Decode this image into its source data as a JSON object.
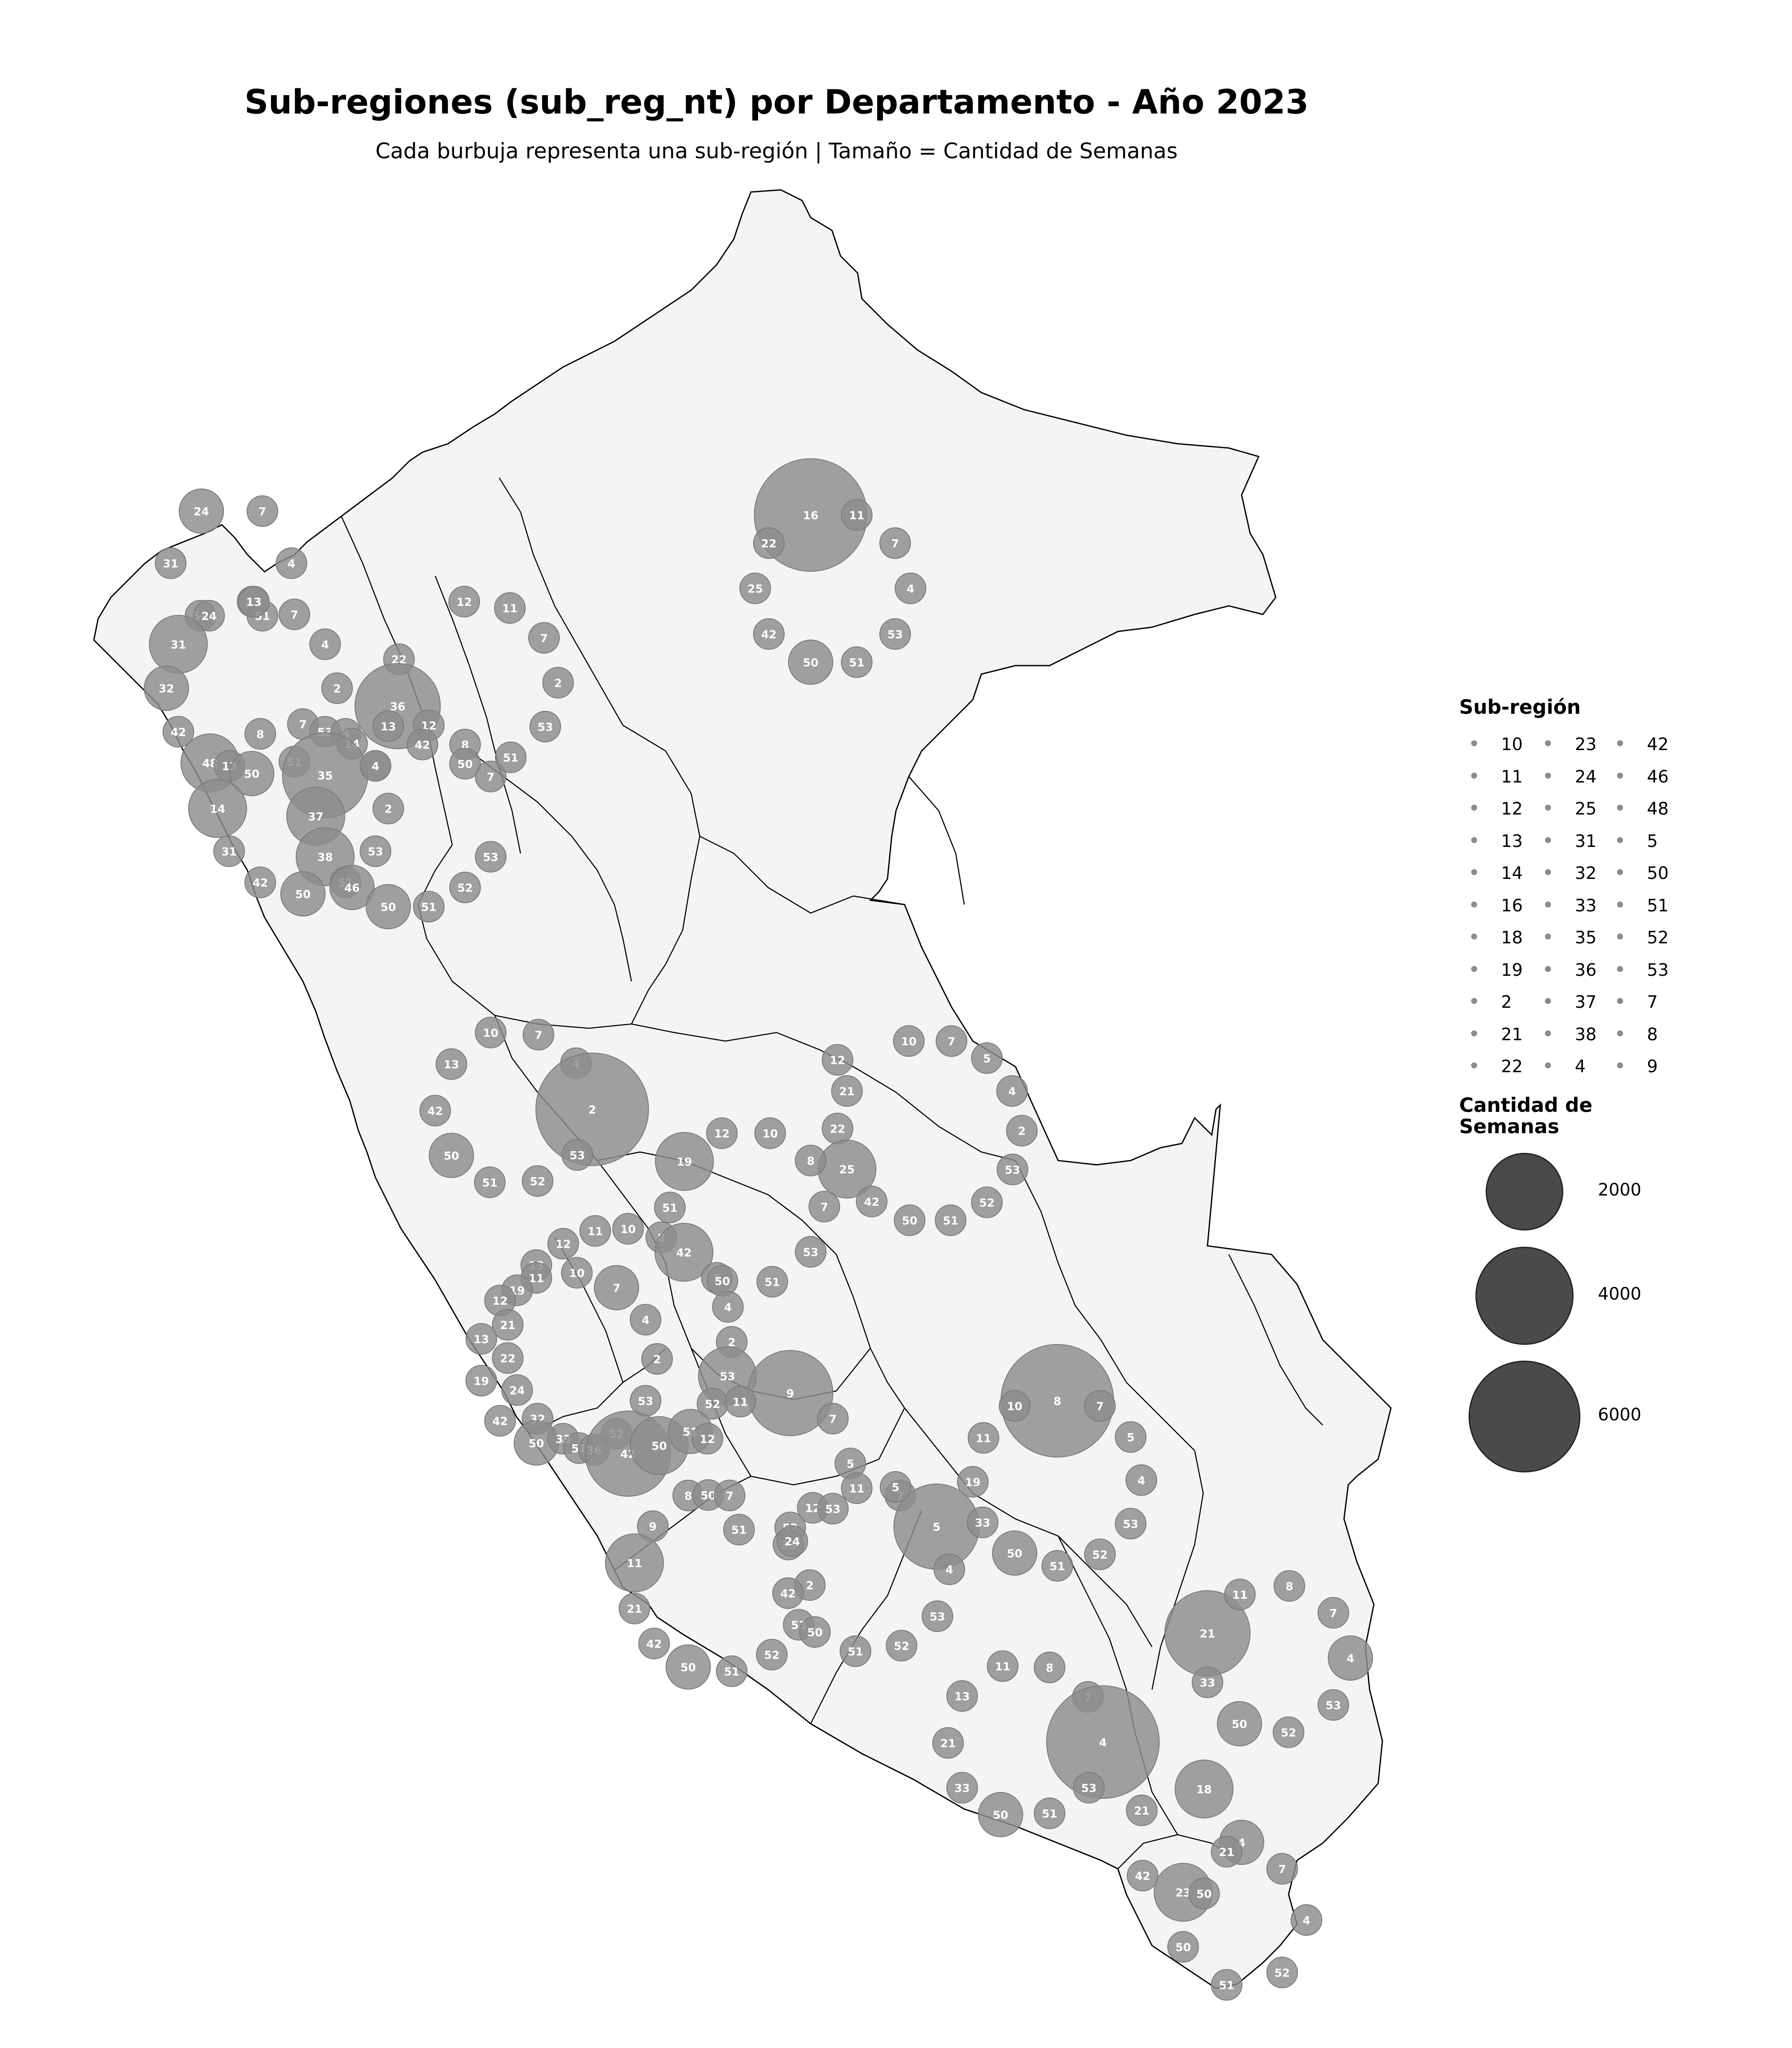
{
  "title": "Sub-regiones (sub_reg_nt) por Departamento - Año 2023",
  "subtitle": "Cada burbuja representa una sub-región | Tamaño = Cantidad de Semanas",
  "colors": {
    "bubble": "#8c8c8c",
    "land": "#f4f4f4",
    "border": "#000000",
    "size_legend": "#4a4a4a"
  },
  "legend_subregion": {
    "title": "Sub-región",
    "columns": [
      [
        "10",
        "11",
        "12",
        "13",
        "14",
        "16",
        "18",
        "19",
        "2",
        "21",
        "22"
      ],
      [
        "23",
        "24",
        "25",
        "31",
        "32",
        "33",
        "35",
        "36",
        "37",
        "38",
        "4"
      ],
      [
        "42",
        "46",
        "48",
        "5",
        "50",
        "51",
        "52",
        "53",
        "7",
        "8",
        "9"
      ]
    ]
  },
  "legend_size": {
    "title_line1": "Cantidad de",
    "title_line2": "Semanas",
    "values": [
      "2000",
      "4000",
      "6000"
    ]
  },
  "bubbles": [
    [
      "16",
      "big"
    ],
    [
      "11",
      "s"
    ],
    [
      "7",
      "s"
    ],
    [
      "4",
      "s"
    ],
    [
      "53",
      "s"
    ],
    [
      "51",
      "s"
    ],
    [
      "50",
      "m"
    ],
    [
      "42",
      "s"
    ],
    [
      "25",
      "s"
    ],
    [
      "22",
      "s"
    ],
    [
      "24",
      "m"
    ],
    [
      "7",
      "s"
    ],
    [
      "31",
      "s"
    ],
    [
      "4",
      "s"
    ],
    [
      "13",
      "s"
    ],
    [
      "51",
      "s"
    ],
    [
      "50",
      "s"
    ],
    [
      "24",
      "s"
    ],
    [
      "7",
      "s"
    ],
    [
      "4",
      "s"
    ],
    [
      "31",
      "l"
    ],
    [
      "32",
      "m"
    ],
    [
      "42",
      "s"
    ],
    [
      "2",
      "s"
    ],
    [
      "13",
      "s"
    ],
    [
      "12",
      "s"
    ],
    [
      "11",
      "s"
    ],
    [
      "7",
      "s"
    ],
    [
      "2",
      "s"
    ],
    [
      "22",
      "s"
    ],
    [
      "36",
      "xl"
    ],
    [
      "13",
      "s"
    ],
    [
      "12",
      "s"
    ],
    [
      "42",
      "s"
    ],
    [
      "8",
      "s"
    ],
    [
      "50",
      "s"
    ],
    [
      "7",
      "s"
    ],
    [
      "51",
      "s"
    ],
    [
      "53",
      "s"
    ],
    [
      "4",
      "s"
    ],
    [
      "48",
      "l"
    ],
    [
      "13",
      "s"
    ],
    [
      "50",
      "m"
    ],
    [
      "8",
      "s"
    ],
    [
      "7",
      "s"
    ],
    [
      "53",
      "s"
    ],
    [
      "5",
      "s"
    ],
    [
      "14",
      "s"
    ],
    [
      "51",
      "s"
    ],
    [
      "35",
      "xl"
    ],
    [
      "4",
      "s"
    ],
    [
      "14",
      "l"
    ],
    [
      "37",
      "l"
    ],
    [
      "2",
      "s"
    ],
    [
      "31",
      "s"
    ],
    [
      "38",
      "l"
    ],
    [
      "53",
      "s"
    ],
    [
      "53",
      "s"
    ],
    [
      "51",
      "s"
    ],
    [
      "46",
      "m"
    ],
    [
      "42",
      "s"
    ],
    [
      "50",
      "m"
    ],
    [
      "50",
      "m"
    ],
    [
      "51",
      "s"
    ],
    [
      "52",
      "s"
    ],
    [
      "10",
      "s"
    ],
    [
      "7",
      "s"
    ],
    [
      "13",
      "s"
    ],
    [
      "4",
      "s"
    ],
    [
      "2",
      "big"
    ],
    [
      "42",
      "s"
    ],
    [
      "50",
      "m"
    ],
    [
      "53",
      "s"
    ],
    [
      "51",
      "s"
    ],
    [
      "52",
      "s"
    ],
    [
      "19",
      "l"
    ],
    [
      "12",
      "s"
    ],
    [
      "10",
      "s"
    ],
    [
      "12",
      "s"
    ],
    [
      "10",
      "s"
    ],
    [
      "7",
      "s"
    ],
    [
      "5",
      "s"
    ],
    [
      "4",
      "s"
    ],
    [
      "21",
      "s"
    ],
    [
      "22",
      "s"
    ],
    [
      "2",
      "s"
    ],
    [
      "25",
      "l"
    ],
    [
      "8",
      "s"
    ],
    [
      "53",
      "s"
    ],
    [
      "7",
      "s"
    ],
    [
      "42",
      "s"
    ],
    [
      "52",
      "s"
    ],
    [
      "50",
      "s"
    ],
    [
      "51",
      "s"
    ],
    [
      "51",
      "s"
    ],
    [
      "10",
      "s"
    ],
    [
      "11",
      "s"
    ],
    [
      "12",
      "s"
    ],
    [
      "8",
      "s"
    ],
    [
      "42",
      "l"
    ],
    [
      "53",
      "s"
    ],
    [
      "13",
      "s"
    ],
    [
      "11",
      "s"
    ],
    [
      "10",
      "s"
    ],
    [
      "7",
      "m"
    ],
    [
      "19",
      "s"
    ],
    [
      "12",
      "s"
    ],
    [
      "5",
      "s"
    ],
    [
      "50",
      "s"
    ],
    [
      "51",
      "s"
    ],
    [
      "4",
      "s"
    ],
    [
      "21",
      "s"
    ],
    [
      "13",
      "s"
    ],
    [
      "22",
      "s"
    ],
    [
      "4",
      "s"
    ],
    [
      "2",
      "s"
    ],
    [
      "2",
      "s"
    ],
    [
      "53",
      "l"
    ],
    [
      "19",
      "s"
    ],
    [
      "24",
      "s"
    ],
    [
      "9",
      "xl"
    ],
    [
      "52",
      "s"
    ],
    [
      "11",
      "s"
    ],
    [
      "7",
      "s"
    ],
    [
      "42",
      "s"
    ],
    [
      "32",
      "s"
    ],
    [
      "53",
      "s"
    ],
    [
      "50",
      "m"
    ],
    [
      "33",
      "s"
    ],
    [
      "51",
      "s"
    ],
    [
      "36",
      "s"
    ],
    [
      "52",
      "s"
    ],
    [
      "42",
      "xl"
    ],
    [
      "50",
      "l"
    ],
    [
      "51",
      "m"
    ],
    [
      "12",
      "s"
    ],
    [
      "8",
      "big"
    ],
    [
      "10",
      "s"
    ],
    [
      "7",
      "s"
    ],
    [
      "5",
      "s"
    ],
    [
      "11",
      "s"
    ],
    [
      "4",
      "s"
    ],
    [
      "53",
      "s"
    ],
    [
      "52",
      "s"
    ],
    [
      "19",
      "s"
    ],
    [
      "7",
      "s"
    ],
    [
      "5",
      "xl"
    ],
    [
      "33",
      "s"
    ],
    [
      "50",
      "m"
    ],
    [
      "51",
      "s"
    ],
    [
      "4",
      "s"
    ],
    [
      "53",
      "s"
    ],
    [
      "5",
      "s"
    ],
    [
      "11",
      "s"
    ],
    [
      "12",
      "s"
    ],
    [
      "53",
      "s"
    ],
    [
      "5",
      "s"
    ],
    [
      "52",
      "s"
    ],
    [
      "33",
      "s"
    ],
    [
      "24",
      "s"
    ],
    [
      "51",
      "s"
    ],
    [
      "9",
      "s"
    ],
    [
      "8",
      "s"
    ],
    [
      "50",
      "s"
    ],
    [
      "7",
      "s"
    ],
    [
      "11",
      "l"
    ],
    [
      "21",
      "s"
    ],
    [
      "42",
      "s"
    ],
    [
      "50",
      "m"
    ],
    [
      "51",
      "s"
    ],
    [
      "2",
      "s"
    ],
    [
      "42",
      "s"
    ],
    [
      "53",
      "s"
    ],
    [
      "50",
      "s"
    ],
    [
      "51",
      "s"
    ],
    [
      "52",
      "s"
    ],
    [
      "52",
      "s"
    ],
    [
      "21",
      "xl"
    ],
    [
      "11",
      "s"
    ],
    [
      "8",
      "s"
    ],
    [
      "7",
      "s"
    ],
    [
      "4",
      "m"
    ],
    [
      "53",
      "s"
    ],
    [
      "33",
      "s"
    ],
    [
      "50",
      "m"
    ],
    [
      "52",
      "s"
    ],
    [
      "11",
      "s"
    ],
    [
      "8",
      "s"
    ],
    [
      "13",
      "s"
    ],
    [
      "7",
      "s"
    ],
    [
      "4",
      "big"
    ],
    [
      "53",
      "s"
    ],
    [
      "21",
      "s"
    ],
    [
      "33",
      "s"
    ],
    [
      "50",
      "m"
    ],
    [
      "51",
      "s"
    ],
    [
      "18",
      "l"
    ],
    [
      "21",
      "s"
    ],
    [
      "4",
      "m"
    ],
    [
      "21",
      "s"
    ],
    [
      "7",
      "s"
    ],
    [
      "42",
      "s"
    ],
    [
      "23",
      "l"
    ],
    [
      "50",
      "s"
    ],
    [
      "4",
      "s"
    ],
    [
      "50",
      "s"
    ],
    [
      "52",
      "s"
    ],
    [
      "51",
      "s"
    ]
  ]
}
